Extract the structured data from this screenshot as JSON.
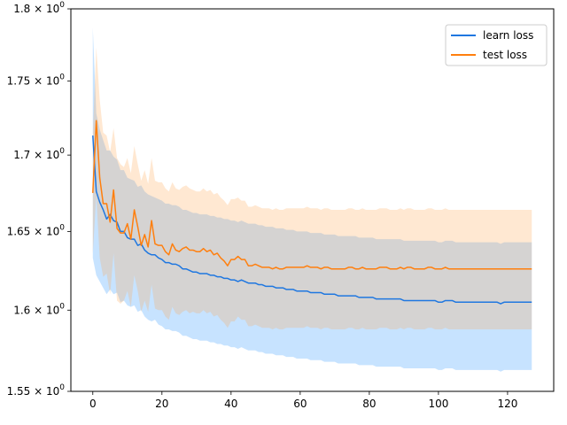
{
  "chart_data": {
    "type": "line",
    "title": "",
    "xlabel": "",
    "ylabel": "",
    "xlim": [
      -6.35,
      133.35
    ],
    "ylim": [
      1.55,
      1.8
    ],
    "yscale": "log",
    "grid": false,
    "legend_position": "top-right",
    "x_ticks": [
      0,
      20,
      40,
      60,
      80,
      100,
      120
    ],
    "x_tick_labels": [
      "0",
      "20",
      "40",
      "60",
      "80",
      "100",
      "120"
    ],
    "y_ticks": [
      1.55,
      1.6,
      1.65,
      1.7,
      1.75,
      1.8
    ],
    "y_tick_labels": [
      {
        "mantissa": "1.55",
        "exp": "0"
      },
      {
        "mantissa": "1.6",
        "exp": "0"
      },
      {
        "mantissa": "1.65",
        "exp": "0"
      },
      {
        "mantissa": "1.7",
        "exp": "0"
      },
      {
        "mantissa": "1.75",
        "exp": "0"
      },
      {
        "mantissa": "1.8",
        "exp": "0"
      }
    ],
    "series": [
      {
        "name": "learn loss",
        "color": "#1f77e0",
        "band_color": "#1e90ff",
        "mean": [
          1.713,
          1.676,
          1.669,
          1.664,
          1.658,
          1.661,
          1.657,
          1.656,
          1.65,
          1.65,
          1.646,
          1.645,
          1.645,
          1.641,
          1.642,
          1.638,
          1.636,
          1.635,
          1.635,
          1.633,
          1.632,
          1.63,
          1.63,
          1.629,
          1.629,
          1.628,
          1.626,
          1.626,
          1.625,
          1.624,
          1.624,
          1.623,
          1.623,
          1.623,
          1.622,
          1.622,
          1.621,
          1.621,
          1.62,
          1.62,
          1.619,
          1.619,
          1.618,
          1.619,
          1.618,
          1.617,
          1.617,
          1.617,
          1.616,
          1.616,
          1.615,
          1.615,
          1.615,
          1.614,
          1.614,
          1.614,
          1.613,
          1.613,
          1.613,
          1.612,
          1.612,
          1.612,
          1.612,
          1.611,
          1.611,
          1.611,
          1.611,
          1.61,
          1.61,
          1.61,
          1.61,
          1.609,
          1.609,
          1.609,
          1.609,
          1.609,
          1.609,
          1.608,
          1.608,
          1.608,
          1.608,
          1.608,
          1.607,
          1.607,
          1.607,
          1.607,
          1.607,
          1.607,
          1.607,
          1.607,
          1.606,
          1.606,
          1.606,
          1.606,
          1.606,
          1.606,
          1.606,
          1.606,
          1.606,
          1.606,
          1.605,
          1.605,
          1.606,
          1.606,
          1.606,
          1.605,
          1.605,
          1.605,
          1.605,
          1.605,
          1.605,
          1.605,
          1.605,
          1.605,
          1.605,
          1.605,
          1.605,
          1.605,
          1.604,
          1.605,
          1.605,
          1.605,
          1.605,
          1.605,
          1.605,
          1.605,
          1.605,
          1.605
        ],
        "upper": [
          1.787,
          1.728,
          1.717,
          1.71,
          1.703,
          1.703,
          1.699,
          1.697,
          1.69,
          1.69,
          1.685,
          1.684,
          1.683,
          1.679,
          1.68,
          1.676,
          1.674,
          1.673,
          1.672,
          1.671,
          1.67,
          1.668,
          1.668,
          1.667,
          1.667,
          1.666,
          1.664,
          1.664,
          1.663,
          1.662,
          1.662,
          1.661,
          1.661,
          1.661,
          1.66,
          1.66,
          1.659,
          1.659,
          1.658,
          1.658,
          1.657,
          1.657,
          1.656,
          1.657,
          1.656,
          1.655,
          1.655,
          1.655,
          1.654,
          1.654,
          1.653,
          1.653,
          1.653,
          1.652,
          1.652,
          1.652,
          1.651,
          1.651,
          1.651,
          1.65,
          1.65,
          1.65,
          1.65,
          1.649,
          1.649,
          1.649,
          1.649,
          1.648,
          1.648,
          1.648,
          1.648,
          1.647,
          1.647,
          1.647,
          1.647,
          1.647,
          1.647,
          1.646,
          1.646,
          1.646,
          1.646,
          1.646,
          1.645,
          1.645,
          1.645,
          1.645,
          1.645,
          1.645,
          1.645,
          1.645,
          1.644,
          1.644,
          1.644,
          1.644,
          1.644,
          1.644,
          1.644,
          1.644,
          1.644,
          1.644,
          1.643,
          1.643,
          1.644,
          1.644,
          1.644,
          1.643,
          1.643,
          1.643,
          1.643,
          1.643,
          1.643,
          1.643,
          1.643,
          1.643,
          1.643,
          1.643,
          1.643,
          1.643,
          1.642,
          1.643,
          1.643,
          1.643,
          1.643,
          1.643,
          1.643,
          1.643,
          1.643,
          1.643
        ],
        "lower": [
          1.633,
          1.622,
          1.618,
          1.614,
          1.61,
          1.613,
          1.61,
          1.611,
          1.605,
          1.606,
          1.603,
          1.602,
          1.603,
          1.599,
          1.6,
          1.596,
          1.594,
          1.593,
          1.594,
          1.591,
          1.59,
          1.588,
          1.588,
          1.587,
          1.587,
          1.586,
          1.584,
          1.584,
          1.583,
          1.582,
          1.582,
          1.581,
          1.581,
          1.581,
          1.58,
          1.58,
          1.579,
          1.579,
          1.578,
          1.578,
          1.577,
          1.577,
          1.576,
          1.577,
          1.576,
          1.575,
          1.575,
          1.575,
          1.574,
          1.574,
          1.573,
          1.573,
          1.573,
          1.572,
          1.572,
          1.572,
          1.571,
          1.571,
          1.571,
          1.57,
          1.57,
          1.57,
          1.57,
          1.569,
          1.569,
          1.569,
          1.569,
          1.568,
          1.568,
          1.568,
          1.568,
          1.567,
          1.567,
          1.567,
          1.567,
          1.567,
          1.567,
          1.566,
          1.566,
          1.566,
          1.566,
          1.566,
          1.565,
          1.565,
          1.565,
          1.565,
          1.565,
          1.565,
          1.565,
          1.565,
          1.564,
          1.564,
          1.564,
          1.564,
          1.564,
          1.564,
          1.564,
          1.564,
          1.564,
          1.564,
          1.563,
          1.563,
          1.564,
          1.564,
          1.564,
          1.563,
          1.563,
          1.563,
          1.563,
          1.563,
          1.563,
          1.563,
          1.563,
          1.563,
          1.563,
          1.563,
          1.563,
          1.563,
          1.562,
          1.563,
          1.563,
          1.563,
          1.563,
          1.563,
          1.563,
          1.563,
          1.563,
          1.563
        ]
      },
      {
        "name": "test loss",
        "color": "#ff7f0e",
        "band_color": "#ffa54d",
        "mean": [
          1.675,
          1.723,
          1.685,
          1.668,
          1.668,
          1.656,
          1.677,
          1.652,
          1.649,
          1.649,
          1.655,
          1.645,
          1.664,
          1.653,
          1.641,
          1.648,
          1.64,
          1.657,
          1.642,
          1.641,
          1.641,
          1.637,
          1.635,
          1.642,
          1.638,
          1.637,
          1.639,
          1.64,
          1.638,
          1.638,
          1.637,
          1.637,
          1.639,
          1.637,
          1.638,
          1.635,
          1.636,
          1.633,
          1.631,
          1.628,
          1.632,
          1.632,
          1.634,
          1.632,
          1.632,
          1.628,
          1.628,
          1.629,
          1.628,
          1.627,
          1.627,
          1.627,
          1.626,
          1.627,
          1.626,
          1.626,
          1.627,
          1.627,
          1.627,
          1.627,
          1.627,
          1.627,
          1.628,
          1.627,
          1.627,
          1.627,
          1.626,
          1.627,
          1.627,
          1.626,
          1.626,
          1.626,
          1.626,
          1.626,
          1.627,
          1.627,
          1.626,
          1.626,
          1.627,
          1.626,
          1.626,
          1.626,
          1.626,
          1.627,
          1.627,
          1.627,
          1.626,
          1.626,
          1.626,
          1.627,
          1.626,
          1.627,
          1.627,
          1.626,
          1.626,
          1.626,
          1.626,
          1.627,
          1.627,
          1.626,
          1.626,
          1.626,
          1.627,
          1.626,
          1.626,
          1.626,
          1.626,
          1.626,
          1.626,
          1.626,
          1.626,
          1.626,
          1.626,
          1.626,
          1.626,
          1.626,
          1.626,
          1.626,
          1.626,
          1.626,
          1.626,
          1.626,
          1.626,
          1.626,
          1.626,
          1.626,
          1.626,
          1.626
        ],
        "upper": [
          1.714,
          1.773,
          1.737,
          1.715,
          1.713,
          1.702,
          1.718,
          1.698,
          1.694,
          1.692,
          1.698,
          1.688,
          1.706,
          1.694,
          1.683,
          1.69,
          1.681,
          1.698,
          1.683,
          1.682,
          1.682,
          1.678,
          1.676,
          1.682,
          1.678,
          1.677,
          1.679,
          1.68,
          1.678,
          1.677,
          1.676,
          1.676,
          1.678,
          1.676,
          1.677,
          1.674,
          1.675,
          1.672,
          1.67,
          1.667,
          1.671,
          1.671,
          1.672,
          1.67,
          1.67,
          1.666,
          1.666,
          1.667,
          1.666,
          1.665,
          1.665,
          1.665,
          1.664,
          1.665,
          1.664,
          1.664,
          1.665,
          1.665,
          1.665,
          1.665,
          1.665,
          1.665,
          1.666,
          1.665,
          1.665,
          1.665,
          1.664,
          1.665,
          1.665,
          1.664,
          1.664,
          1.664,
          1.664,
          1.664,
          1.665,
          1.665,
          1.664,
          1.664,
          1.665,
          1.664,
          1.664,
          1.664,
          1.664,
          1.665,
          1.665,
          1.665,
          1.664,
          1.664,
          1.664,
          1.665,
          1.664,
          1.665,
          1.665,
          1.664,
          1.664,
          1.664,
          1.664,
          1.665,
          1.665,
          1.664,
          1.664,
          1.664,
          1.665,
          1.664,
          1.664,
          1.664,
          1.664,
          1.664,
          1.664,
          1.664,
          1.664,
          1.664,
          1.664,
          1.664,
          1.664,
          1.664,
          1.664,
          1.664,
          1.664,
          1.664,
          1.664,
          1.664,
          1.664,
          1.664,
          1.664,
          1.664,
          1.664,
          1.664
        ],
        "lower": [
          1.636,
          1.673,
          1.633,
          1.621,
          1.623,
          1.61,
          1.636,
          1.606,
          1.604,
          1.606,
          1.612,
          1.602,
          1.622,
          1.612,
          1.599,
          1.606,
          1.599,
          1.616,
          1.601,
          1.6,
          1.6,
          1.596,
          1.594,
          1.602,
          1.598,
          1.597,
          1.599,
          1.6,
          1.598,
          1.599,
          1.598,
          1.598,
          1.6,
          1.598,
          1.599,
          1.596,
          1.597,
          1.594,
          1.592,
          1.589,
          1.593,
          1.593,
          1.596,
          1.594,
          1.594,
          1.59,
          1.59,
          1.591,
          1.59,
          1.589,
          1.589,
          1.589,
          1.588,
          1.589,
          1.588,
          1.588,
          1.589,
          1.589,
          1.589,
          1.589,
          1.589,
          1.589,
          1.59,
          1.589,
          1.589,
          1.589,
          1.588,
          1.589,
          1.589,
          1.588,
          1.588,
          1.588,
          1.588,
          1.588,
          1.589,
          1.589,
          1.588,
          1.588,
          1.589,
          1.588,
          1.588,
          1.588,
          1.588,
          1.589,
          1.589,
          1.589,
          1.588,
          1.588,
          1.588,
          1.589,
          1.588,
          1.589,
          1.589,
          1.588,
          1.588,
          1.588,
          1.588,
          1.589,
          1.589,
          1.588,
          1.588,
          1.588,
          1.589,
          1.588,
          1.588,
          1.588,
          1.588,
          1.588,
          1.588,
          1.588,
          1.588,
          1.588,
          1.588,
          1.588,
          1.588,
          1.588,
          1.588,
          1.588,
          1.588,
          1.588,
          1.588,
          1.588,
          1.588,
          1.588,
          1.588,
          1.588,
          1.588,
          1.588
        ]
      }
    ]
  }
}
